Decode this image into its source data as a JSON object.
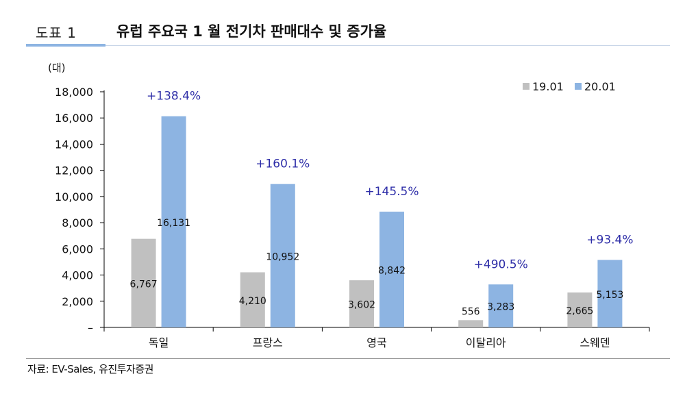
{
  "header": {
    "figure_label": "도표 1",
    "title": "유럽 주요국 1 월 전기차 판매대수 및 증가율"
  },
  "footer": {
    "source": "자료: EV-Sales, 유진투자증권"
  },
  "colors": {
    "series_19": "#c0c0c0",
    "series_20": "#8db4e2",
    "growth_label": "#2e2ea8",
    "accent_rule": "#8db4e2"
  },
  "chart_data": {
    "type": "bar",
    "ylabel": "(대)",
    "ylim": [
      0,
      18000
    ],
    "yticks": [
      {
        "value": 0,
        "label": "–"
      },
      {
        "value": 2000,
        "label": "2,000"
      },
      {
        "value": 4000,
        "label": "4,000"
      },
      {
        "value": 6000,
        "label": "6,000"
      },
      {
        "value": 8000,
        "label": "8,000"
      },
      {
        "value": 10000,
        "label": "10,000"
      },
      {
        "value": 12000,
        "label": "12,000"
      },
      {
        "value": 14000,
        "label": "14,000"
      },
      {
        "value": 16000,
        "label": "16,000"
      },
      {
        "value": 18000,
        "label": "18,000"
      }
    ],
    "categories": [
      "독일",
      "프랑스",
      "영국",
      "이탈리아",
      "스웨덴"
    ],
    "series": [
      {
        "name": "19.01",
        "values": [
          6767,
          4210,
          3602,
          556,
          2665
        ],
        "labels": [
          "6,767",
          "4,210",
          "3,602",
          "556",
          "2,665"
        ]
      },
      {
        "name": "20.01",
        "values": [
          16131,
          10952,
          8842,
          3283,
          5153
        ],
        "labels": [
          "16,131",
          "10,952",
          "8,842",
          "3,283",
          "5,153"
        ]
      }
    ],
    "growth_labels": [
      "+138.4%",
      "+160.1%",
      "+145.5%",
      "+490.5%",
      "+93.4%"
    ],
    "legend_position": "top-right",
    "grid": false
  }
}
